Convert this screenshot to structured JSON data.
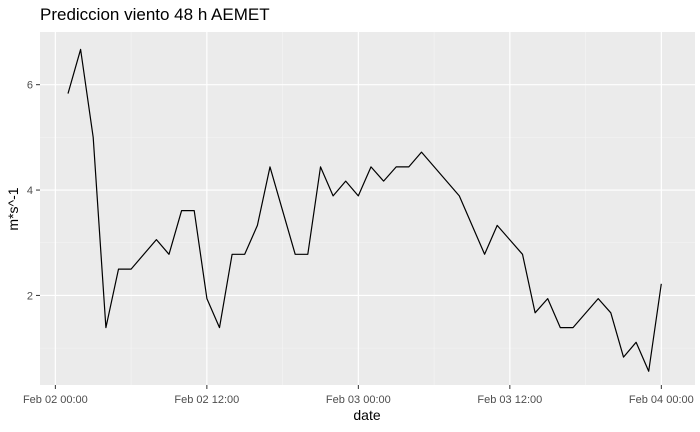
{
  "chart_data": {
    "type": "line",
    "title": "Prediccion viento 48 h AEMET",
    "xlabel": "date",
    "ylabel": "m*s^-1",
    "x_ticks": [
      "Feb 02 00:00",
      "Feb 02 12:00",
      "Feb 03 00:00",
      "Feb 03 12:00",
      "Feb 04 00:00"
    ],
    "y_ticks": [
      2,
      4,
      6
    ],
    "ylim": [
      0.3,
      7.0
    ],
    "xlim": [
      "2024-02-01 22:47",
      "2024-02-04 02:40"
    ],
    "grid": true,
    "panel_background": "#ebebeb",
    "line_color": "#000000",
    "series": [
      {
        "x": [
          "2024-02-02 01:00",
          "2024-02-02 02:00",
          "2024-02-02 03:00",
          "2024-02-02 04:00",
          "2024-02-02 05:00",
          "2024-02-02 06:00",
          "2024-02-02 08:00",
          "2024-02-02 09:00",
          "2024-02-02 10:00",
          "2024-02-02 11:00",
          "2024-02-02 12:00",
          "2024-02-02 13:00",
          "2024-02-02 14:00",
          "2024-02-02 15:00",
          "2024-02-02 16:00",
          "2024-02-02 17:00",
          "2024-02-02 19:00",
          "2024-02-02 20:00",
          "2024-02-02 21:00",
          "2024-02-02 22:00",
          "2024-02-02 23:00",
          "2024-02-03 00:00",
          "2024-02-03 01:00",
          "2024-02-03 02:00",
          "2024-02-03 03:00",
          "2024-02-03 04:00",
          "2024-02-03 05:00",
          "2024-02-03 08:00",
          "2024-02-03 10:00",
          "2024-02-03 11:00",
          "2024-02-03 13:00",
          "2024-02-03 14:00",
          "2024-02-03 15:00",
          "2024-02-03 16:00",
          "2024-02-03 17:00",
          "2024-02-03 19:00",
          "2024-02-03 20:00",
          "2024-02-03 21:00",
          "2024-02-03 22:00",
          "2024-02-03 23:00",
          "2024-02-04 00:00"
        ],
        "y": [
          5.83,
          6.67,
          5.0,
          1.39,
          2.5,
          2.5,
          3.06,
          2.78,
          3.61,
          3.61,
          1.94,
          1.39,
          2.78,
          2.78,
          3.33,
          4.44,
          2.78,
          2.78,
          4.44,
          3.89,
          4.17,
          3.89,
          4.44,
          4.17,
          4.44,
          4.44,
          4.72,
          3.89,
          2.78,
          3.33,
          2.78,
          1.67,
          1.94,
          1.39,
          1.39,
          1.94,
          1.67,
          0.83,
          1.11,
          0.56,
          2.22
        ]
      }
    ]
  }
}
